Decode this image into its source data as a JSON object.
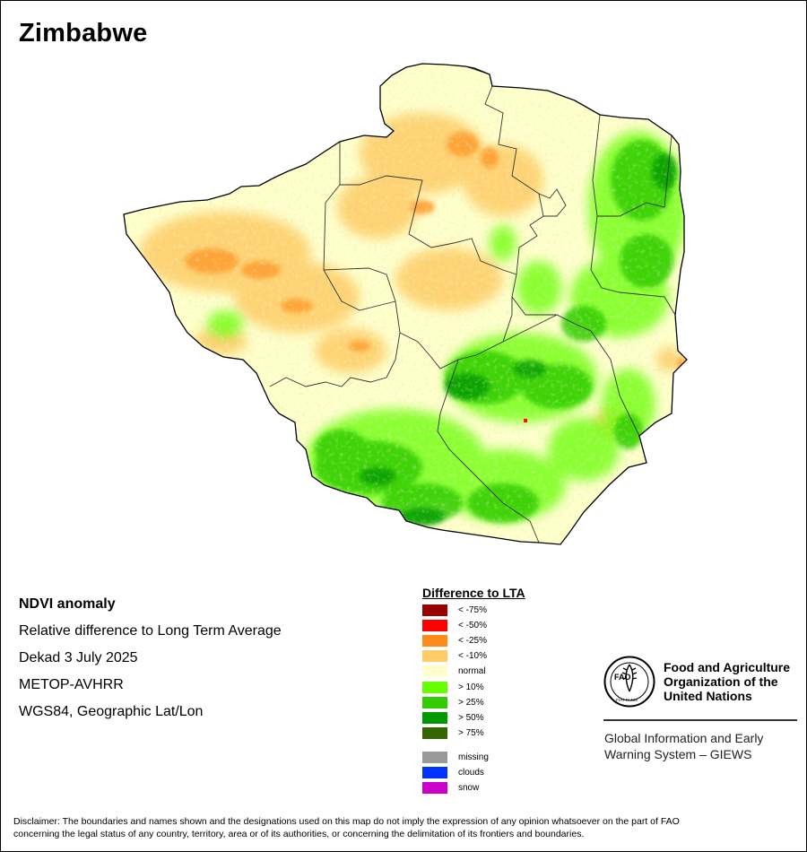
{
  "map": {
    "title": "Zimbabwe"
  },
  "info": {
    "line1": "NDVI anomaly",
    "line2": "Relative difference to Long Term Average",
    "line3": "Dekad 3 July 2025",
    "line4": "METOP-AVHRR",
    "line5": "WGS84, Geographic Lat/Lon"
  },
  "legend": {
    "title": "Difference to LTA",
    "items": [
      {
        "label": "< -75%",
        "color": "#990000"
      },
      {
        "label": "< -50%",
        "color": "#ff0000"
      },
      {
        "label": "< -25%",
        "color": "#ff8c1a"
      },
      {
        "label": "< -10%",
        "color": "#ffcc66"
      },
      {
        "label": "normal",
        "color": "#ffffcc"
      },
      {
        "label": "> 10%",
        "color": "#66ff00"
      },
      {
        "label": "> 25%",
        "color": "#33cc00"
      },
      {
        "label": "> 50%",
        "color": "#009900"
      },
      {
        "label": "> 75%",
        "color": "#336600"
      }
    ],
    "extras": [
      {
        "label": "missing",
        "color": "#999999"
      },
      {
        "label": "clouds",
        "color": "#0033ff"
      },
      {
        "label": "snow",
        "color": "#cc00cc"
      }
    ]
  },
  "fao": {
    "name_line1": "Food and Agriculture",
    "name_line2": "Organization of the",
    "name_line3": "United Nations",
    "emblem_text": "FAO",
    "emblem_motto": "FIAT PANIS",
    "giews_line1": "Global Information and Early",
    "giews_line2": "Warning System – GIEWS"
  },
  "disclaimer": {
    "line1": "Disclaimer: The boundaries and names shown and the designations used on this map do not imply the expression of any opinion whatsoever on the part of FAO",
    "line2": "concerning the legal status of any country, territory, area or of its authorities, or concerning the delimitation of its frontiers and boundaries."
  }
}
